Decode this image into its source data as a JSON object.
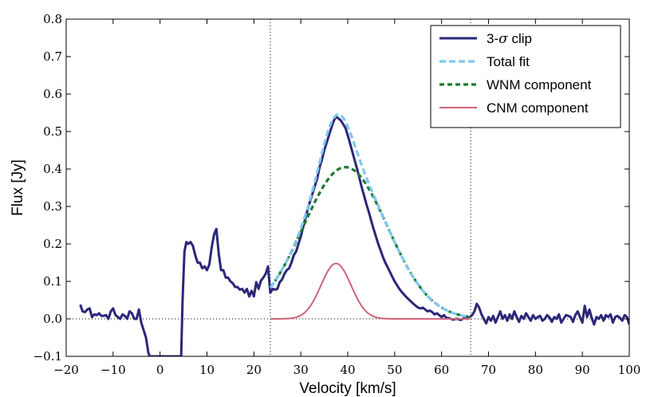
{
  "chart_data": {
    "type": "line",
    "xlabel": "Velocity [km/s]",
    "ylabel": "Flux [Jy]",
    "xlim": [
      -20,
      100
    ],
    "ylim": [
      -0.1,
      0.8
    ],
    "xticks": [
      -20,
      -10,
      0,
      10,
      20,
      30,
      40,
      50,
      60,
      70,
      80,
      90,
      100
    ],
    "yticks": [
      -0.1,
      0.0,
      0.1,
      0.2,
      0.3,
      0.4,
      0.5,
      0.6,
      0.7,
      0.8
    ],
    "xtick_labels": [
      "−20",
      "−10",
      "0",
      "10",
      "20",
      "30",
      "40",
      "50",
      "60",
      "70",
      "80",
      "90",
      "100"
    ],
    "ytick_labels": [
      "−0.1",
      "0.0",
      "0.1",
      "0.2",
      "0.3",
      "0.4",
      "0.5",
      "0.6",
      "0.7",
      "0.8"
    ],
    "vlines": [
      23.5,
      66.2
    ],
    "hline": 0.0,
    "legend_position": "upper-right",
    "series": [
      {
        "name": "3-σ clip",
        "name_prefix": "3-",
        "name_symbol": "σ",
        "name_suffix": " clip",
        "color": "#2b2778",
        "style": "solid",
        "x": [
          -17,
          -16.5,
          -16,
          -15.5,
          -15,
          -14.5,
          -14,
          -13.5,
          -13,
          -12.5,
          -12,
          -11.5,
          -11,
          -10.5,
          -10,
          -9.5,
          -9,
          -8.5,
          -8,
          -7.5,
          -7,
          -6.5,
          -6,
          -5.5,
          -5,
          -4.5,
          -4,
          -3.5,
          -3,
          -2.5,
          -2.2,
          4.5,
          4.8,
          5.2,
          5.6,
          6,
          6.5,
          7,
          7.5,
          8,
          8.5,
          9,
          9.5,
          10,
          10.5,
          11,
          11.5,
          12,
          12.5,
          13,
          13.5,
          14,
          14.5,
          15,
          15.5,
          16,
          16.5,
          17,
          17.5,
          18,
          18.5,
          19,
          19.5,
          20,
          20.5,
          21,
          21.5,
          22,
          22.5,
          23,
          23.5,
          24,
          24.5,
          25,
          25.5,
          26,
          26.5,
          27,
          27.5,
          28,
          28.5,
          29,
          29.5,
          30,
          30.5,
          31,
          31.5,
          32,
          32.5,
          33,
          33.5,
          34,
          34.5,
          35,
          35.5,
          36,
          36.5,
          37,
          37.5,
          38,
          38.5,
          39,
          39.5,
          40,
          40.5,
          41,
          41.5,
          42,
          42.5,
          43,
          43.5,
          44,
          44.5,
          45,
          45.5,
          46,
          46.5,
          47,
          47.5,
          48,
          48.5,
          49,
          49.5,
          50,
          50.5,
          51,
          51.5,
          52,
          52.5,
          53,
          53.5,
          54,
          54.5,
          55,
          55.5,
          56,
          56.5,
          57,
          57.5,
          58,
          58.5,
          59,
          59.5,
          60,
          60.5,
          61,
          61.5,
          62,
          62.5,
          63,
          63.5,
          64,
          64.5,
          65,
          65.5,
          66,
          66.5,
          67,
          67.5,
          68,
          68.5,
          69,
          69.5,
          70,
          70.5,
          71,
          71.5,
          72,
          72.5,
          73,
          73.5,
          74,
          74.5,
          75,
          75.5,
          76,
          76.5,
          77,
          77.5,
          78,
          78.5,
          79,
          79.5,
          80,
          80.5,
          81,
          81.5,
          82,
          82.5,
          83,
          83.5,
          84,
          84.5,
          85,
          85.5,
          86,
          86.5,
          87,
          87.5,
          88,
          88.5,
          89,
          89.5,
          90,
          90.5,
          91,
          91.5,
          92,
          92.5,
          93,
          93.5,
          94,
          94.5,
          95,
          95.5,
          96,
          96.5,
          97,
          97.5,
          98,
          98.5,
          99,
          99.5,
          100
        ],
        "y": [
          0.038,
          0.02,
          0.018,
          0.025,
          0.028,
          0.005,
          0.012,
          0.01,
          0.015,
          0.008,
          0.008,
          0.01,
          0.0,
          0.02,
          0.028,
          0.01,
          0.005,
          0.0,
          0.012,
          0.008,
          0.0,
          0.02,
          0.015,
          0.0,
          0.0,
          0.025,
          -0.01,
          -0.03,
          -0.05,
          -0.09,
          -0.1,
          -0.1,
          0.05,
          0.18,
          0.205,
          0.2,
          0.205,
          0.195,
          0.17,
          0.15,
          0.15,
          0.135,
          0.14,
          0.13,
          0.145,
          0.19,
          0.225,
          0.24,
          0.175,
          0.13,
          0.13,
          0.11,
          0.11,
          0.1,
          0.095,
          0.085,
          0.085,
          0.078,
          0.08,
          0.07,
          0.08,
          0.06,
          0.075,
          0.06,
          0.098,
          0.08,
          0.102,
          0.11,
          0.12,
          0.14,
          0.07,
          0.08,
          0.078,
          0.08,
          0.098,
          0.105,
          0.12,
          0.13,
          0.135,
          0.15,
          0.17,
          0.18,
          0.2,
          0.22,
          0.245,
          0.27,
          0.295,
          0.315,
          0.335,
          0.355,
          0.375,
          0.405,
          0.425,
          0.45,
          0.47,
          0.49,
          0.51,
          0.528,
          0.54,
          0.535,
          0.53,
          0.52,
          0.51,
          0.49,
          0.468,
          0.445,
          0.422,
          0.4,
          0.375,
          0.35,
          0.328,
          0.305,
          0.285,
          0.262,
          0.24,
          0.22,
          0.2,
          0.183,
          0.165,
          0.15,
          0.138,
          0.125,
          0.112,
          0.1,
          0.09,
          0.08,
          0.072,
          0.065,
          0.058,
          0.052,
          0.046,
          0.04,
          0.035,
          0.03,
          0.028,
          0.03,
          0.025,
          0.02,
          0.022,
          0.018,
          0.012,
          0.015,
          0.01,
          0.005,
          0.01,
          0.003,
          0.002,
          0.0,
          -0.002,
          0.0,
          0.0,
          -0.003,
          0.0,
          0.003,
          0.0,
          0.005,
          0.01,
          0.02,
          0.04,
          0.03,
          0.012,
          0.0,
          -0.012,
          0.005,
          -0.005,
          0.008,
          -0.01,
          0.005,
          0.02,
          0.0,
          0.01,
          -0.005,
          0.012,
          0.0,
          0.02,
          0.005,
          -0.008,
          0.008,
          0.0,
          0.015,
          0.005,
          -0.005,
          0.01,
          0.0,
          0.005,
          0.008,
          -0.005,
          0.0,
          0.01,
          0.004,
          -0.008,
          0.005,
          0.0,
          0.012,
          -0.01,
          0.0,
          0.01,
          0.008,
          0.005,
          -0.008,
          0.01,
          0.02,
          0.005,
          -0.01,
          0.035,
          0.005,
          0.025,
          0.002,
          -0.015,
          0.005,
          0.0,
          0.01,
          -0.005,
          0.01,
          0.005,
          0.012,
          -0.01,
          0.005,
          0.008,
          0.003,
          -0.005,
          0.01,
          0.005,
          -0.015
        ]
      },
      {
        "name": "Total fit",
        "color": "#7ec8ee",
        "style": "dashed",
        "components": [
          [
            0.405,
            39.5,
            9.0
          ],
          [
            0.148,
            37.5,
            3.2
          ]
        ],
        "x_range": [
          23.5,
          66.2
        ]
      },
      {
        "name": "WNM component",
        "color": "#1e7a32",
        "style": "dashed",
        "components": [
          [
            0.405,
            39.5,
            9.0
          ]
        ],
        "x_range": [
          23.5,
          66.2
        ]
      },
      {
        "name": "CNM component",
        "color": "#cc6577",
        "style": "solid",
        "components": [
          [
            0.148,
            37.5,
            3.2
          ]
        ],
        "x_range": [
          23.5,
          66.2
        ]
      }
    ]
  }
}
